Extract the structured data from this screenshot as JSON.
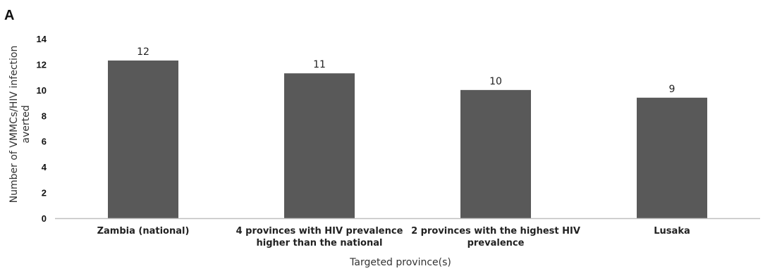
{
  "panel_label": "A",
  "chart_data": {
    "type": "bar",
    "categories": [
      [
        "Zambia (national)"
      ],
      [
        "4 provinces with HIV prevalence",
        "higher than the national"
      ],
      [
        "2 provinces with the highest HIV",
        "prevalence"
      ],
      [
        "Lusaka"
      ]
    ],
    "values": [
      12.3,
      11.3,
      10,
      9.4
    ],
    "data_labels": [
      "12",
      "11",
      "10",
      "9"
    ],
    "title": "",
    "xlabel": "Targeted province(s)",
    "ylabel": [
      "Number of VMMCs/HIV infection",
      "averted"
    ],
    "ylim": [
      0,
      14
    ],
    "yticks": [
      0,
      2,
      4,
      6,
      8,
      10,
      12,
      14
    ],
    "grid": false,
    "legend": "none",
    "colors": {
      "bar": "#595959",
      "axis": "#bfbfbf",
      "text": "#222222"
    }
  }
}
